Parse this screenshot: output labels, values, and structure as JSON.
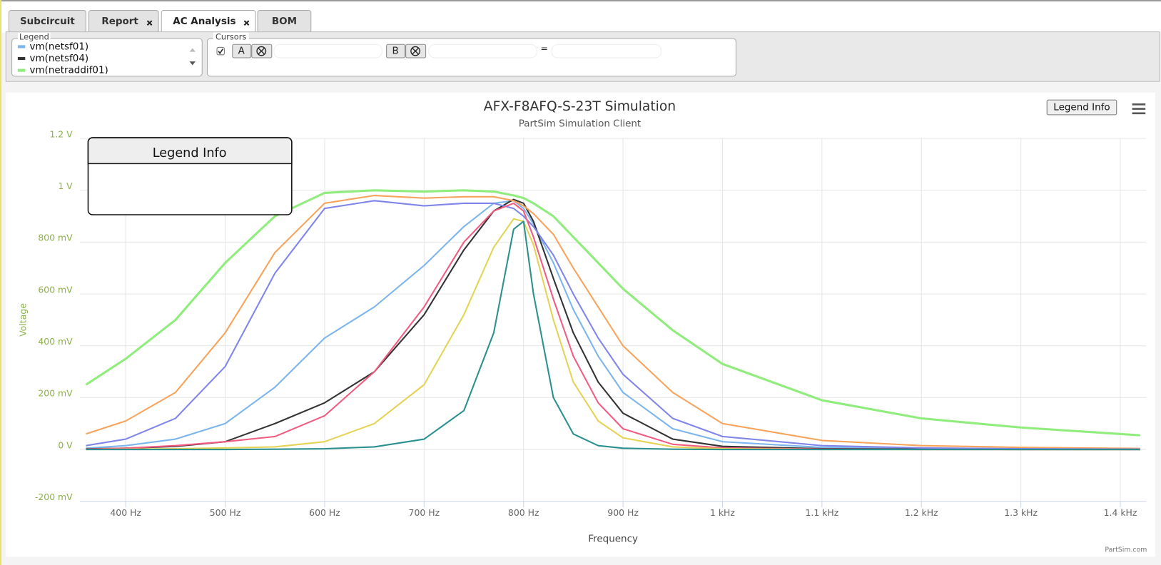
{
  "tabs": [
    "Subcircuit",
    "Report",
    "AC Analysis",
    "BOM"
  ],
  "legend_panel": {
    "title": "Legend"
  },
  "cursors": {
    "title": "Cursors",
    "a": "A",
    "b": "B",
    "equals": "="
  },
  "legend_button": "Legend Info",
  "legend_info_box": {
    "title": "Legend Info"
  },
  "credit": "PartSim.com",
  "chart_data": {
    "type": "line",
    "title": "AFX-F8AFQ-S-23T Simulation",
    "subtitle": "PartSim Simulation Client",
    "x_label": "Frequency",
    "y_label": "Voltage",
    "x": [
      360,
      400,
      450,
      500,
      550,
      600,
      650,
      700,
      740,
      770,
      790,
      800,
      810,
      830,
      850,
      875,
      900,
      950,
      1000,
      1100,
      1200,
      1300,
      1420
    ],
    "xlim": [
      354,
      1426
    ],
    "xticks": [
      {
        "value": 400,
        "label": "400 Hz"
      },
      {
        "value": 500,
        "label": "500 Hz"
      },
      {
        "value": 600,
        "label": "600 Hz"
      },
      {
        "value": 700,
        "label": "700 Hz"
      },
      {
        "value": 800,
        "label": "800 Hz"
      },
      {
        "value": 900,
        "label": "900 Hz"
      },
      {
        "value": 1000,
        "label": "1 kHz"
      },
      {
        "value": 1100,
        "label": "1.1 kHz"
      },
      {
        "value": 1200,
        "label": "1.2 kHz"
      },
      {
        "value": 1300,
        "label": "1.3 kHz"
      },
      {
        "value": 1400,
        "label": "1.4 kHz"
      }
    ],
    "ylim": [
      -0.2,
      1.2
    ],
    "yticks": [
      {
        "value": -0.2,
        "label": "-200 mV"
      },
      {
        "value": 0,
        "label": "0 V"
      },
      {
        "value": 0.2,
        "label": "200 mV"
      },
      {
        "value": 0.4,
        "label": "400 mV"
      },
      {
        "value": 0.6,
        "label": "600 mV"
      },
      {
        "value": 0.8,
        "label": "800 mV"
      },
      {
        "value": 1,
        "label": "1 V"
      },
      {
        "value": 1.2,
        "label": "1.2 V"
      }
    ],
    "grid": true,
    "series": [
      {
        "name": "vm(netsf01)",
        "color": "#7cb5ec",
        "values": [
          0.005,
          0.015,
          0.04,
          0.1,
          0.24,
          0.43,
          0.55,
          0.71,
          0.86,
          0.95,
          0.96,
          0.93,
          0.87,
          0.72,
          0.54,
          0.36,
          0.22,
          0.08,
          0.03,
          0.008,
          0.003,
          0.001,
          0
        ]
      },
      {
        "name": "vm(netsf04)",
        "color": "#333333",
        "values": [
          0.002,
          0.005,
          0.012,
          0.03,
          0.1,
          0.18,
          0.3,
          0.52,
          0.77,
          0.92,
          0.965,
          0.95,
          0.88,
          0.66,
          0.45,
          0.26,
          0.14,
          0.04,
          0.012,
          0.003,
          0.001,
          0,
          0
        ]
      },
      {
        "name": "vm(netraddif01)",
        "color": "#90ed7d",
        "values": [
          0.25,
          0.35,
          0.5,
          0.72,
          0.9,
          0.99,
          1.0,
          0.995,
          1.0,
          0.995,
          0.98,
          0.97,
          0.95,
          0.9,
          0.82,
          0.72,
          0.62,
          0.46,
          0.33,
          0.19,
          0.12,
          0.085,
          0.055
        ]
      },
      {
        "color": "#f7a35c",
        "values": [
          0.06,
          0.11,
          0.22,
          0.45,
          0.76,
          0.95,
          0.98,
          0.97,
          0.975,
          0.975,
          0.96,
          0.94,
          0.91,
          0.83,
          0.7,
          0.55,
          0.4,
          0.22,
          0.1,
          0.035,
          0.015,
          0.008,
          0.004
        ]
      },
      {
        "color": "#8085e9",
        "values": [
          0.015,
          0.04,
          0.12,
          0.32,
          0.68,
          0.93,
          0.96,
          0.94,
          0.95,
          0.95,
          0.93,
          0.9,
          0.86,
          0.75,
          0.6,
          0.43,
          0.29,
          0.12,
          0.05,
          0.015,
          0.006,
          0.003,
          0.001
        ]
      },
      {
        "color": "#f15c80",
        "values": [
          0.001,
          0.005,
          0.015,
          0.03,
          0.05,
          0.13,
          0.3,
          0.55,
          0.8,
          0.92,
          0.95,
          0.92,
          0.82,
          0.58,
          0.36,
          0.18,
          0.08,
          0.02,
          0.006,
          0.001,
          0,
          0,
          0
        ]
      },
      {
        "color": "#e4d354",
        "values": [
          0,
          0.001,
          0.003,
          0.006,
          0.01,
          0.03,
          0.1,
          0.25,
          0.52,
          0.78,
          0.89,
          0.88,
          0.79,
          0.5,
          0.26,
          0.11,
          0.045,
          0.01,
          0.003,
          0,
          0,
          0,
          0
        ]
      },
      {
        "color": "#2b908f",
        "values": [
          0,
          0,
          0,
          0,
          0.001,
          0.003,
          0.01,
          0.04,
          0.15,
          0.45,
          0.85,
          0.88,
          0.6,
          0.2,
          0.06,
          0.015,
          0.005,
          0.001,
          0,
          0,
          0,
          0,
          0
        ]
      }
    ]
  }
}
